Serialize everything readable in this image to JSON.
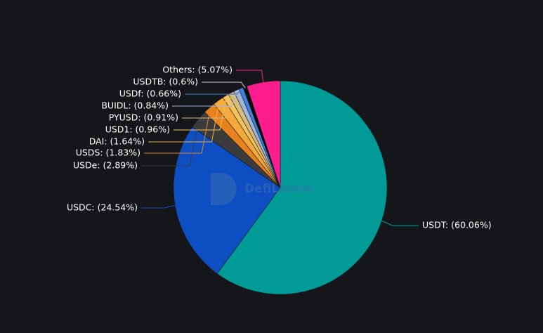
{
  "chart_data": {
    "type": "pie",
    "watermark": "DefiLlama",
    "values": [
      60.06,
      24.54,
      2.89,
      1.83,
      1.64,
      0.96,
      0.91,
      0.84,
      0.66,
      0.6,
      5.07
    ],
    "value_labels": [
      "USDT: (60.06%)",
      "USDC: (24.54%)",
      "USDe: (2.89%)",
      "USDS: (1.83%)",
      "DAI: (1.64%)",
      "USD1: (0.96%)",
      "PYUSD: (0.91%)",
      "BUIDL: (0.84%)",
      "USDf: (0.66%)",
      "USDTB: (0.6%)",
      "Others: (5.07%)"
    ],
    "colors": [
      "#009b97",
      "#0d4fc2",
      "#3b3b3d",
      "#e8821e",
      "#f5a93a",
      "#f4c25d",
      "#d8b97e",
      "#9fb6d6",
      "#3f7fe0",
      "#0a0a0a",
      "#ff1c8e"
    ]
  }
}
